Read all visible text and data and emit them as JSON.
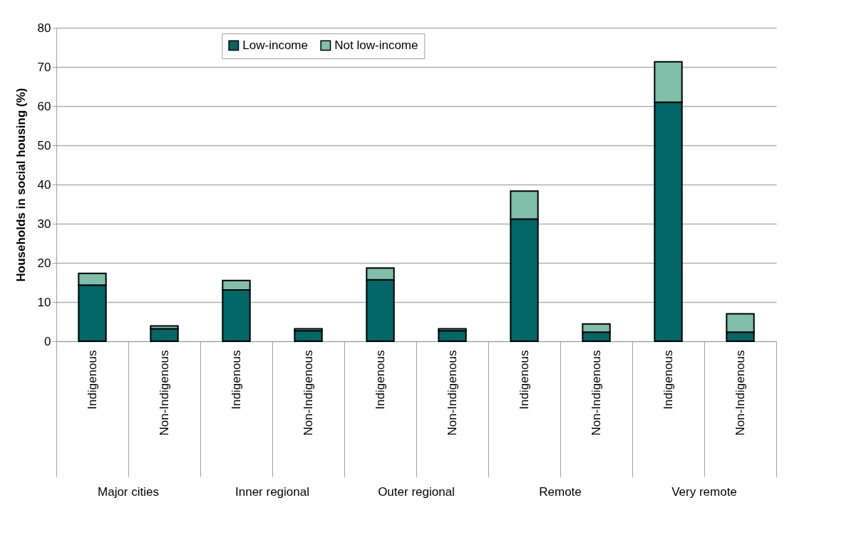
{
  "chart_data": {
    "type": "bar",
    "stacked": true,
    "categories": [
      "Indigenous",
      "Non-Indigenous",
      "Indigenous",
      "Non-Indigenous",
      "Indigenous",
      "Non-Indigenous",
      "Indigenous",
      "Non-Indigenous",
      "Indigenous",
      "Non-Indigenous"
    ],
    "series": [
      {
        "name": "Low-income",
        "color": "#006666",
        "values": [
          14.3,
          3.2,
          13.1,
          2.7,
          15.7,
          2.7,
          31.2,
          2.3,
          61.0,
          2.3
        ]
      },
      {
        "name": "Not low-income",
        "color": "#80bfaa",
        "values": [
          3.0,
          0.7,
          2.4,
          0.5,
          3.0,
          0.5,
          7.1,
          2.1,
          10.3,
          4.7
        ]
      }
    ],
    "ylabel": "Households in social housing (%)",
    "ylim": [
      0,
      80
    ],
    "yticks": [
      0,
      10,
      20,
      30,
      40,
      50,
      60,
      70,
      80
    ],
    "grid": "y",
    "legend": "top",
    "annotations": [
      "Major cities",
      "Inner regional",
      "Outer regional",
      "Remote",
      "Very remote"
    ]
  }
}
